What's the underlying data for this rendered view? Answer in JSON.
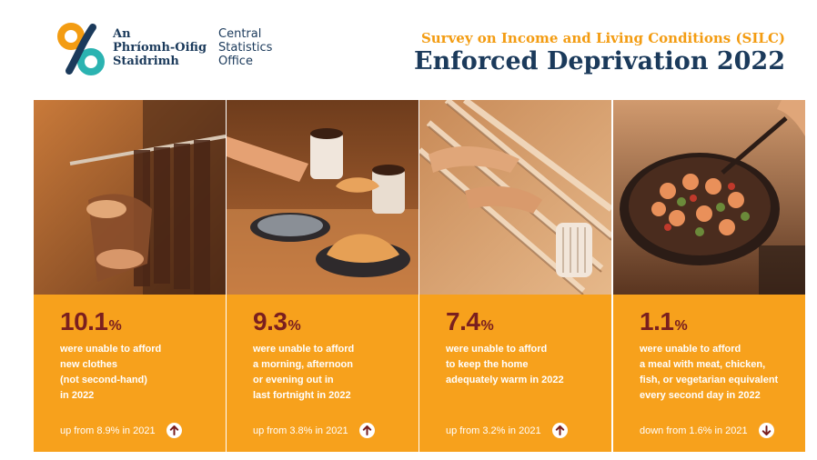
{
  "header": {
    "org_irish": [
      "An",
      "Phríomh-Oifig",
      "Staidrimh"
    ],
    "org_english": [
      "Central",
      "Statistics",
      "Office"
    ],
    "survey_title": "Survey on Income and Living Conditions (SILC)",
    "main_title": "Enforced Deprivation 2022",
    "logo_icon": "cso-logo-icon"
  },
  "colors": {
    "card_bg": "#f7a11c",
    "stat_text": "#7a1f1f",
    "navy": "#1b3a5b",
    "orange_title": "#f39c12"
  },
  "cards": [
    {
      "value": "10.1",
      "unit": "%",
      "desc": [
        "were unable to afford",
        "new clothes",
        "(not second-hand)",
        "in 2022"
      ],
      "trend": "up from 8.9% in 2021",
      "direction": "up",
      "photo_icon": "clothes-rack-photo"
    },
    {
      "value": "9.3",
      "unit": "%",
      "desc": [
        "were unable to afford",
        "a morning, afternoon",
        "or evening out in",
        "last fortnight in 2022"
      ],
      "trend": "up from 3.8% in 2021",
      "direction": "up",
      "photo_icon": "coffee-croissant-photo"
    },
    {
      "value": "7.4",
      "unit": "%",
      "desc": [
        "were unable to afford",
        "to keep the home",
        "adequately warm in 2022"
      ],
      "trend": "up from 3.2% in 2021",
      "direction": "up",
      "photo_icon": "radiator-hands-photo"
    },
    {
      "value": "1.1",
      "unit": "%",
      "desc": [
        "were unable to afford",
        "a meal with meat, chicken,",
        "fish, or vegetarian equivalent",
        "every second day in 2022"
      ],
      "trend": "down from 1.6% in 2021",
      "direction": "down",
      "photo_icon": "frying-pan-meal-photo"
    }
  ]
}
